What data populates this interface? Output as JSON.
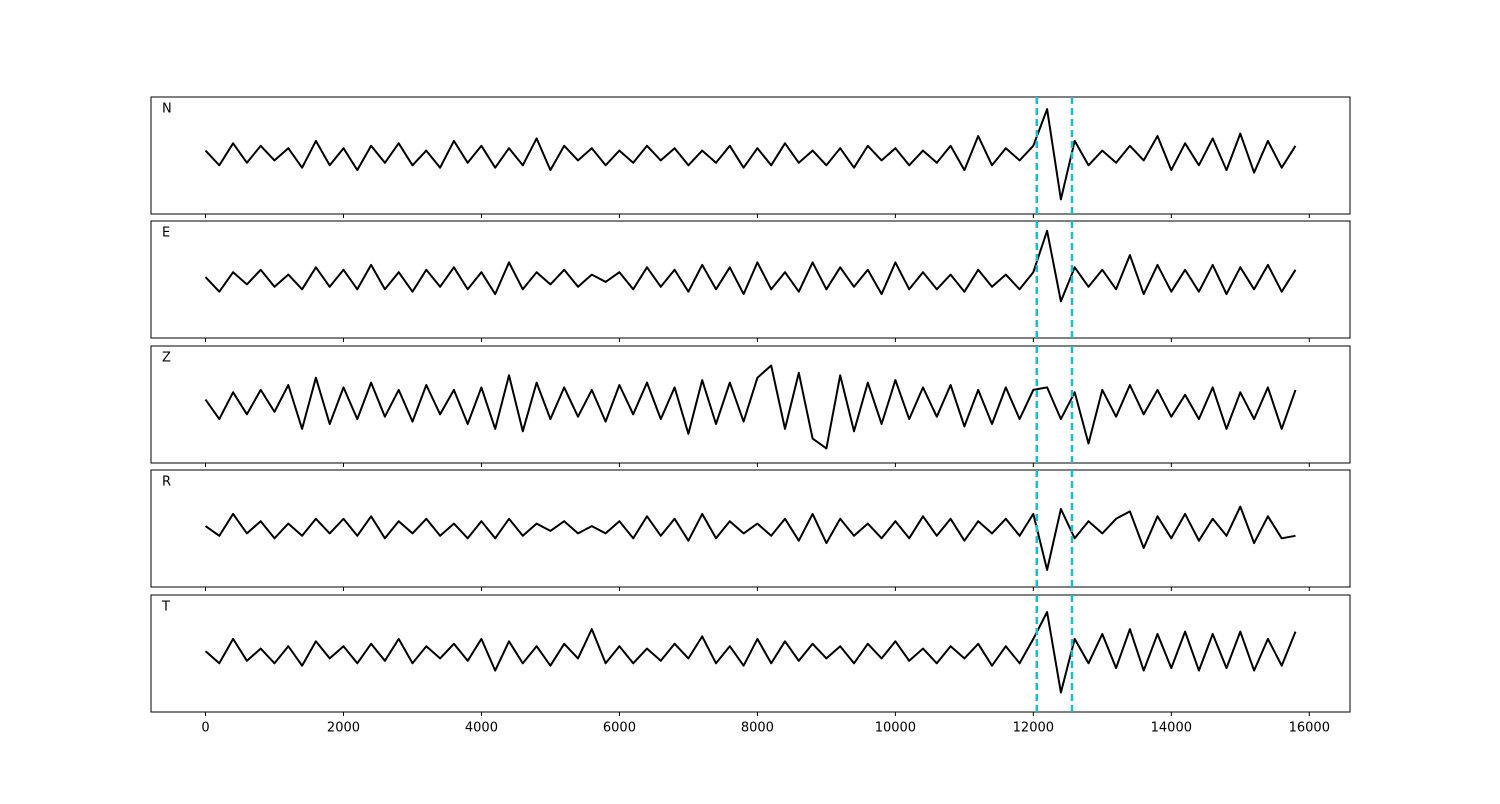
{
  "chart_data": {
    "type": "line",
    "x": [
      0,
      200,
      400,
      600,
      800,
      1000,
      1200,
      1400,
      1600,
      1800,
      2000,
      2200,
      2400,
      2600,
      2800,
      3000,
      3200,
      3400,
      3600,
      3800,
      4000,
      4200,
      4400,
      4600,
      4800,
      5000,
      5200,
      5400,
      5600,
      5800,
      6000,
      6200,
      6400,
      6600,
      6800,
      7000,
      7200,
      7400,
      7600,
      7800,
      8000,
      8200,
      8400,
      8600,
      8800,
      9000,
      9200,
      9400,
      9600,
      9800,
      10000,
      10200,
      10400,
      10600,
      10800,
      11000,
      11200,
      11400,
      11600,
      11800,
      12000,
      12200,
      12400,
      12600,
      12800,
      13000,
      13200,
      13400,
      13600,
      13800,
      14000,
      14200,
      14400,
      14600,
      14800,
      15000,
      15200,
      15400,
      15600,
      15800
    ],
    "series": [
      {
        "name": "N",
        "color": "#000000",
        "values": [
          0.1,
          -0.2,
          0.25,
          -0.15,
          0.2,
          -0.1,
          0.15,
          -0.25,
          0.3,
          -0.2,
          0.15,
          -0.3,
          0.2,
          -0.15,
          0.25,
          -0.2,
          0.1,
          -0.25,
          0.3,
          -0.15,
          0.2,
          -0.25,
          0.15,
          -0.2,
          0.35,
          -0.3,
          0.2,
          -0.1,
          0.15,
          -0.2,
          0.1,
          -0.15,
          0.2,
          -0.1,
          0.15,
          -0.2,
          0.1,
          -0.15,
          0.2,
          -0.25,
          0.15,
          -0.2,
          0.25,
          -0.15,
          0.1,
          -0.2,
          0.15,
          -0.25,
          0.2,
          -0.1,
          0.15,
          -0.2,
          0.1,
          -0.15,
          0.2,
          -0.3,
          0.4,
          -0.2,
          0.15,
          -0.1,
          0.2,
          0.95,
          -0.9,
          0.3,
          -0.2,
          0.1,
          -0.15,
          0.2,
          -0.1,
          0.4,
          -0.3,
          0.25,
          -0.2,
          0.35,
          -0.3,
          0.45,
          -0.35,
          0.3,
          -0.25,
          0.2
        ]
      },
      {
        "name": "E",
        "color": "#000000",
        "values": [
          0.05,
          -0.25,
          0.15,
          -0.1,
          0.2,
          -0.15,
          0.1,
          -0.2,
          0.25,
          -0.15,
          0.2,
          -0.2,
          0.3,
          -0.2,
          0.15,
          -0.25,
          0.2,
          -0.15,
          0.25,
          -0.2,
          0.15,
          -0.3,
          0.35,
          -0.2,
          0.15,
          -0.1,
          0.2,
          -0.15,
          0.1,
          -0.05,
          0.15,
          -0.2,
          0.25,
          -0.15,
          0.2,
          -0.25,
          0.3,
          -0.2,
          0.25,
          -0.3,
          0.35,
          -0.2,
          0.15,
          -0.25,
          0.35,
          -0.2,
          0.25,
          -0.15,
          0.2,
          -0.3,
          0.35,
          -0.2,
          0.15,
          -0.2,
          0.1,
          -0.25,
          0.2,
          -0.15,
          0.1,
          -0.2,
          0.15,
          1.0,
          -0.45,
          0.25,
          -0.15,
          0.2,
          -0.2,
          0.5,
          -0.3,
          0.3,
          -0.25,
          0.2,
          -0.25,
          0.3,
          -0.3,
          0.25,
          -0.2,
          0.3,
          -0.25,
          0.2
        ]
      },
      {
        "name": "Z",
        "color": "#000000",
        "values": [
          0.1,
          -0.3,
          0.25,
          -0.2,
          0.3,
          -0.15,
          0.4,
          -0.5,
          0.55,
          -0.4,
          0.35,
          -0.3,
          0.45,
          -0.25,
          0.3,
          -0.35,
          0.4,
          -0.2,
          0.3,
          -0.4,
          0.35,
          -0.5,
          0.6,
          -0.55,
          0.45,
          -0.3,
          0.35,
          -0.25,
          0.3,
          -0.35,
          0.4,
          -0.2,
          0.45,
          -0.3,
          0.35,
          -0.6,
          0.5,
          -0.4,
          0.45,
          -0.35,
          0.55,
          0.8,
          -0.5,
          0.65,
          -0.7,
          -0.9,
          0.6,
          -0.55,
          0.45,
          -0.4,
          0.5,
          -0.3,
          0.35,
          -0.25,
          0.4,
          -0.45,
          0.3,
          -0.4,
          0.35,
          -0.3,
          0.3,
          0.35,
          -0.3,
          0.25,
          -0.8,
          0.3,
          -0.25,
          0.4,
          -0.2,
          0.3,
          -0.25,
          0.2,
          -0.3,
          0.35,
          -0.5,
          0.25,
          -0.3,
          0.35,
          -0.5,
          0.3
        ]
      },
      {
        "name": "R",
        "color": "#000000",
        "values": [
          0.05,
          -0.15,
          0.3,
          -0.1,
          0.15,
          -0.2,
          0.1,
          -0.15,
          0.2,
          -0.1,
          0.2,
          -0.15,
          0.25,
          -0.2,
          0.15,
          -0.1,
          0.2,
          -0.15,
          0.1,
          -0.2,
          0.15,
          -0.2,
          0.2,
          -0.15,
          0.1,
          -0.05,
          0.15,
          -0.1,
          0.05,
          -0.1,
          0.15,
          -0.2,
          0.25,
          -0.15,
          0.2,
          -0.25,
          0.3,
          -0.2,
          0.15,
          -0.1,
          0.1,
          -0.15,
          0.2,
          -0.25,
          0.3,
          -0.3,
          0.2,
          -0.15,
          0.1,
          -0.2,
          0.15,
          -0.2,
          0.25,
          -0.15,
          0.2,
          -0.25,
          0.15,
          -0.1,
          0.2,
          -0.15,
          0.3,
          -0.85,
          0.4,
          -0.2,
          0.15,
          -0.1,
          0.2,
          0.35,
          -0.4,
          0.25,
          -0.2,
          0.3,
          -0.25,
          0.2,
          -0.15,
          0.45,
          -0.3,
          0.25,
          -0.2,
          -0.15
        ]
      },
      {
        "name": "T",
        "color": "#000000",
        "values": [
          0.05,
          -0.2,
          0.3,
          -0.15,
          0.1,
          -0.2,
          0.15,
          -0.25,
          0.25,
          -0.1,
          0.15,
          -0.2,
          0.2,
          -0.15,
          0.3,
          -0.2,
          0.15,
          -0.1,
          0.2,
          -0.15,
          0.3,
          -0.35,
          0.25,
          -0.2,
          0.15,
          -0.25,
          0.2,
          -0.1,
          0.5,
          -0.2,
          0.15,
          -0.2,
          0.1,
          -0.15,
          0.2,
          -0.1,
          0.35,
          -0.2,
          0.15,
          -0.25,
          0.3,
          -0.2,
          0.25,
          -0.15,
          0.2,
          -0.1,
          0.15,
          -0.2,
          0.2,
          -0.1,
          0.25,
          -0.15,
          0.1,
          -0.2,
          0.15,
          -0.1,
          0.2,
          -0.25,
          0.15,
          -0.2,
          0.3,
          0.85,
          -0.8,
          0.3,
          -0.2,
          0.4,
          -0.3,
          0.5,
          -0.35,
          0.4,
          -0.3,
          0.45,
          -0.35,
          0.4,
          -0.3,
          0.45,
          -0.35,
          0.3,
          -0.25,
          0.45
        ]
      }
    ],
    "xlim": [
      -790,
      16590
    ],
    "xticks": [
      0,
      2000,
      4000,
      6000,
      8000,
      10000,
      12000,
      14000,
      16000
    ],
    "ylim": [
      -1.2,
      1.2
    ],
    "vlines": {
      "values": [
        12050,
        12560
      ],
      "color": "#17becf"
    }
  }
}
